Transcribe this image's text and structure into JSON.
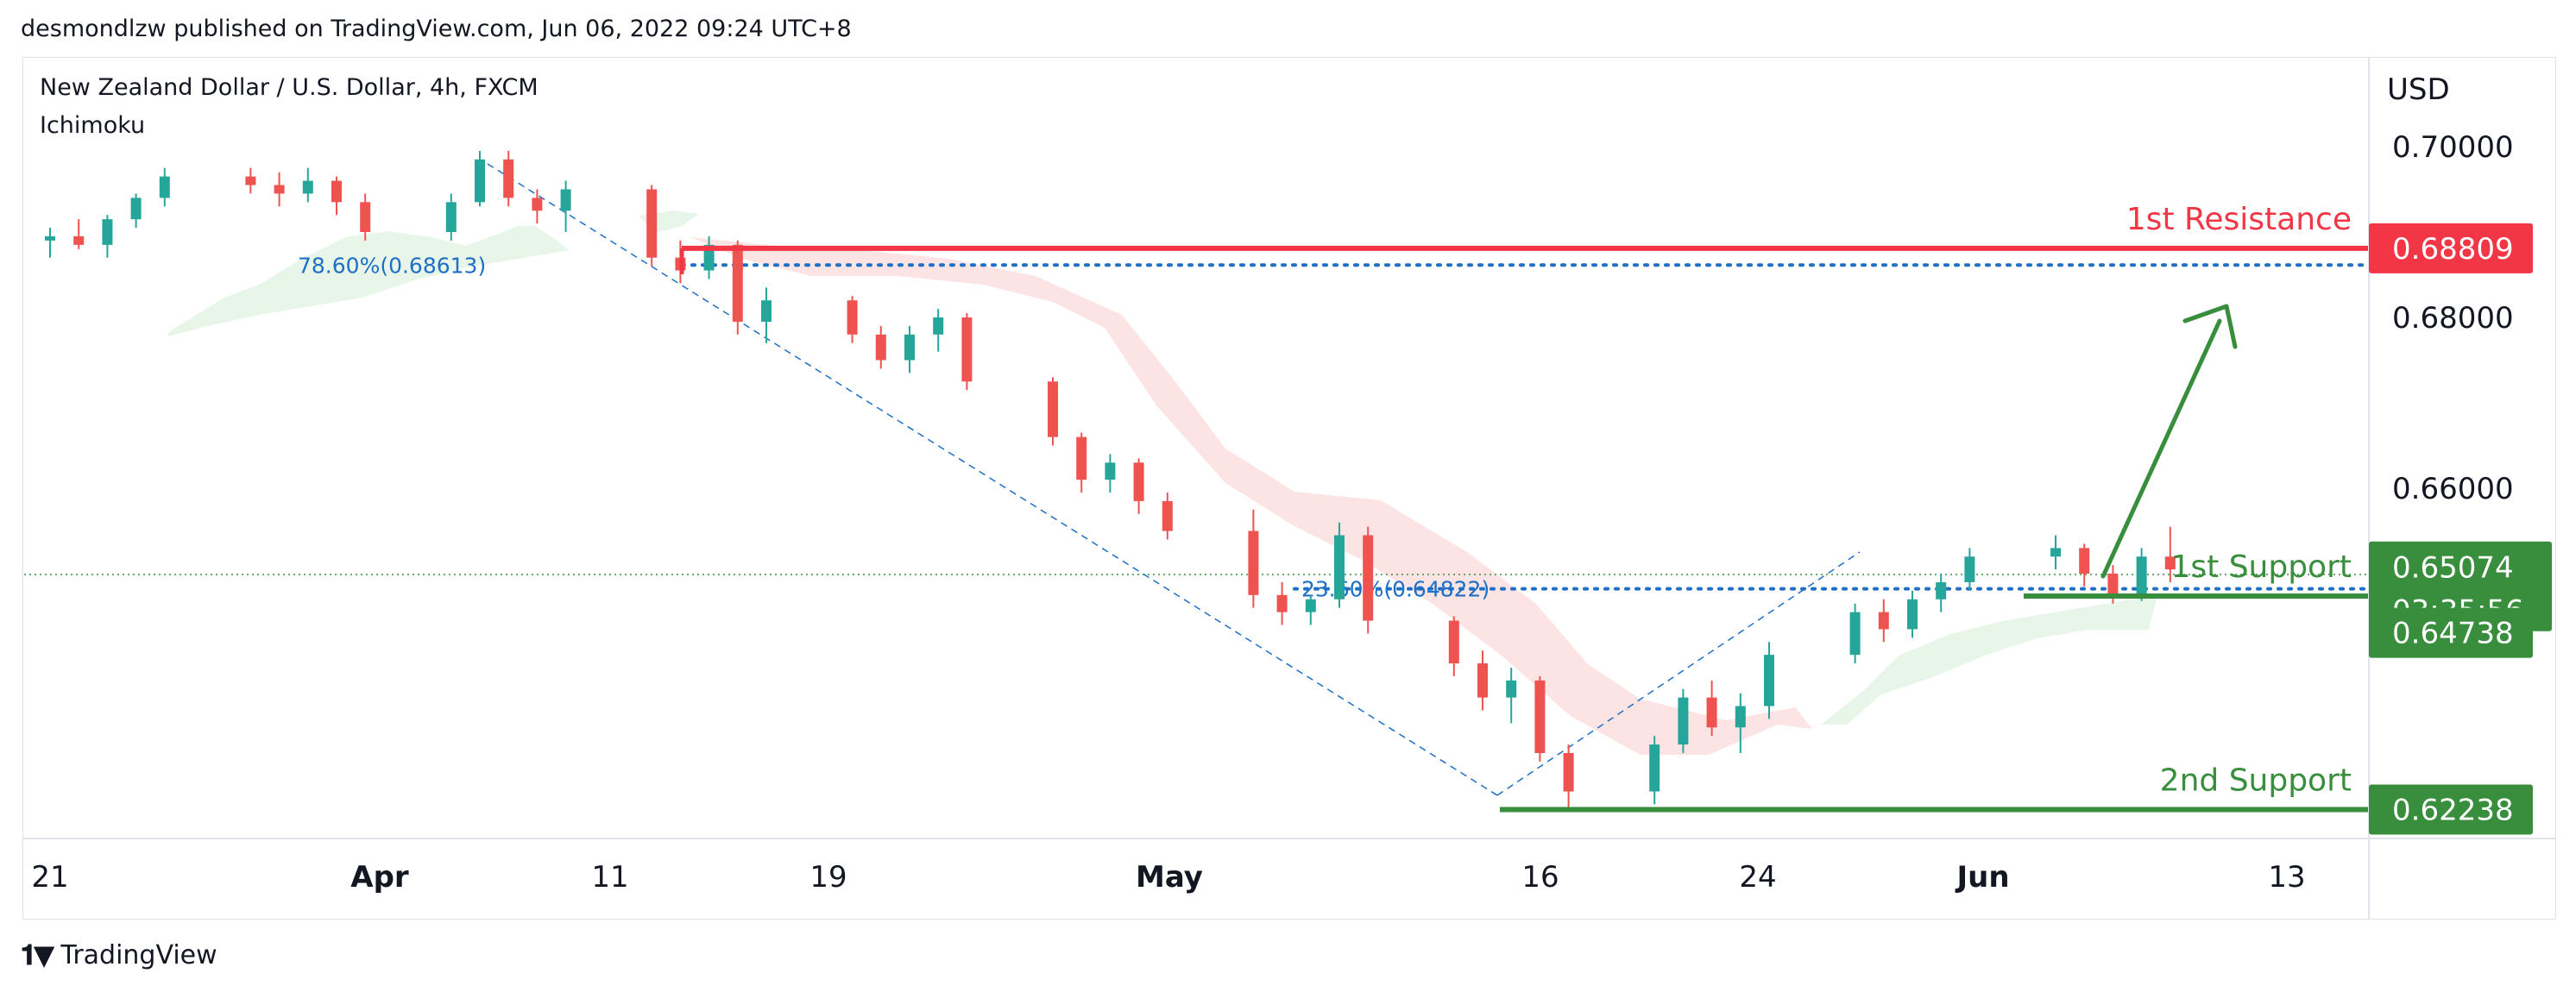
{
  "header": {
    "published": "desmondlzw published on TradingView.com, Jun 06, 2022 09:24 UTC+8"
  },
  "legend": {
    "symbol": "New Zealand Dollar / U.S. Dollar, 4h, FXCM",
    "indicator": "Ichimoku"
  },
  "price_axis": {
    "currency": "USD"
  },
  "footer": {
    "brand": "TradingView",
    "logo": "tradingview-logo-icon"
  },
  "colors": {
    "resistance": "#f23645",
    "support": "#388e3c",
    "fib": "#1e6fc6",
    "candle_up": "#26a69a",
    "candle_down": "#ef5350",
    "cloud_bull": "#e8f5e9",
    "cloud_bear": "#fde4e4"
  },
  "chart_data": {
    "type": "candlestick",
    "title": "",
    "series_name": "",
    "x_ticks": [
      "21",
      "Apr",
      "11",
      "19",
      "May",
      "16",
      "24",
      "Jun",
      "13"
    ],
    "y_ticks": [
      "0.70000",
      "0.68000",
      "0.66000"
    ],
    "ylim": [
      0.619,
      0.7105
    ],
    "grid": false,
    "levels": [
      {
        "label": "1st Resistance",
        "value": 0.68809,
        "price_label": "0.68809",
        "kind": "resistance"
      },
      {
        "label": "1st Support",
        "value": 0.64738,
        "price_label": "0.64738",
        "kind": "support"
      },
      {
        "label": "2nd Support",
        "value": 0.62238,
        "price_label": "0.62238",
        "kind": "support"
      }
    ],
    "fibonacci": [
      {
        "label": "78.60%(0.68613)",
        "value": 0.68613
      },
      {
        "label": "23.60%(0.64822)",
        "value": 0.64822
      }
    ],
    "current_price": {
      "price_label": "0.65074",
      "value": 0.65074,
      "countdown": "03:35:56"
    },
    "candles": [
      {
        "date": "2022-03-21",
        "o": 0.689,
        "h": 0.6905,
        "l": 0.687,
        "c": 0.6895
      },
      {
        "date": "2022-03-22",
        "o": 0.6895,
        "h": 0.6915,
        "l": 0.688,
        "c": 0.6885
      },
      {
        "date": "2022-03-23",
        "o": 0.6885,
        "h": 0.692,
        "l": 0.687,
        "c": 0.6915
      },
      {
        "date": "2022-03-24",
        "o": 0.6915,
        "h": 0.6945,
        "l": 0.6905,
        "c": 0.694
      },
      {
        "date": "2022-03-25",
        "o": 0.694,
        "h": 0.6975,
        "l": 0.693,
        "c": 0.6965
      },
      {
        "date": "2022-03-28",
        "o": 0.6965,
        "h": 0.6975,
        "l": 0.6945,
        "c": 0.6955
      },
      {
        "date": "2022-03-29",
        "o": 0.6955,
        "h": 0.697,
        "l": 0.693,
        "c": 0.6945
      },
      {
        "date": "2022-03-30",
        "o": 0.6945,
        "h": 0.6975,
        "l": 0.6935,
        "c": 0.696
      },
      {
        "date": "2022-03-31",
        "o": 0.696,
        "h": 0.6965,
        "l": 0.692,
        "c": 0.6935
      },
      {
        "date": "2022-04-01",
        "o": 0.6935,
        "h": 0.6945,
        "l": 0.689,
        "c": 0.69
      },
      {
        "date": "2022-04-04",
        "o": 0.69,
        "h": 0.6945,
        "l": 0.689,
        "c": 0.6935
      },
      {
        "date": "2022-04-05",
        "o": 0.6935,
        "h": 0.6995,
        "l": 0.693,
        "c": 0.6985
      },
      {
        "date": "2022-04-06",
        "o": 0.6985,
        "h": 0.6995,
        "l": 0.693,
        "c": 0.694
      },
      {
        "date": "2022-04-07",
        "o": 0.694,
        "h": 0.695,
        "l": 0.691,
        "c": 0.6925
      },
      {
        "date": "2022-04-08",
        "o": 0.6925,
        "h": 0.696,
        "l": 0.69,
        "c": 0.695
      },
      {
        "date": "2022-04-11",
        "o": 0.695,
        "h": 0.6955,
        "l": 0.686,
        "c": 0.687
      },
      {
        "date": "2022-04-12",
        "o": 0.687,
        "h": 0.689,
        "l": 0.684,
        "c": 0.6855
      },
      {
        "date": "2022-04-13",
        "o": 0.6855,
        "h": 0.6895,
        "l": 0.6845,
        "c": 0.6885
      },
      {
        "date": "2022-04-14",
        "o": 0.6885,
        "h": 0.689,
        "l": 0.678,
        "c": 0.6795
      },
      {
        "date": "2022-04-15",
        "o": 0.6795,
        "h": 0.6835,
        "l": 0.677,
        "c": 0.682
      },
      {
        "date": "2022-04-18",
        "o": 0.682,
        "h": 0.6825,
        "l": 0.677,
        "c": 0.678
      },
      {
        "date": "2022-04-19",
        "o": 0.678,
        "h": 0.679,
        "l": 0.674,
        "c": 0.675
      },
      {
        "date": "2022-04-20",
        "o": 0.675,
        "h": 0.679,
        "l": 0.6735,
        "c": 0.678
      },
      {
        "date": "2022-04-21",
        "o": 0.678,
        "h": 0.681,
        "l": 0.676,
        "c": 0.68
      },
      {
        "date": "2022-04-22",
        "o": 0.68,
        "h": 0.6805,
        "l": 0.6715,
        "c": 0.6725
      },
      {
        "date": "2022-04-25",
        "o": 0.6725,
        "h": 0.673,
        "l": 0.665,
        "c": 0.666
      },
      {
        "date": "2022-04-26",
        "o": 0.666,
        "h": 0.6665,
        "l": 0.6595,
        "c": 0.661
      },
      {
        "date": "2022-04-27",
        "o": 0.661,
        "h": 0.664,
        "l": 0.6595,
        "c": 0.663
      },
      {
        "date": "2022-04-28",
        "o": 0.663,
        "h": 0.6635,
        "l": 0.657,
        "c": 0.6585
      },
      {
        "date": "2022-04-29",
        "o": 0.6585,
        "h": 0.6595,
        "l": 0.654,
        "c": 0.655
      },
      {
        "date": "2022-05-02",
        "o": 0.655,
        "h": 0.6575,
        "l": 0.646,
        "c": 0.6475
      },
      {
        "date": "2022-05-03",
        "o": 0.6475,
        "h": 0.649,
        "l": 0.644,
        "c": 0.6455
      },
      {
        "date": "2022-05-04",
        "o": 0.6455,
        "h": 0.6475,
        "l": 0.644,
        "c": 0.647
      },
      {
        "date": "2022-05-05",
        "o": 0.647,
        "h": 0.656,
        "l": 0.646,
        "c": 0.6545
      },
      {
        "date": "2022-05-06",
        "o": 0.6545,
        "h": 0.6555,
        "l": 0.643,
        "c": 0.6445
      },
      {
        "date": "2022-05-09",
        "o": 0.6445,
        "h": 0.645,
        "l": 0.638,
        "c": 0.6395
      },
      {
        "date": "2022-05-10",
        "o": 0.6395,
        "h": 0.641,
        "l": 0.634,
        "c": 0.6355
      },
      {
        "date": "2022-05-11",
        "o": 0.6355,
        "h": 0.639,
        "l": 0.6325,
        "c": 0.6375
      },
      {
        "date": "2022-05-12",
        "o": 0.6375,
        "h": 0.638,
        "l": 0.628,
        "c": 0.629
      },
      {
        "date": "2022-05-13",
        "o": 0.629,
        "h": 0.63,
        "l": 0.6224,
        "c": 0.6245
      },
      {
        "date": "2022-05-16",
        "o": 0.6245,
        "h": 0.631,
        "l": 0.623,
        "c": 0.63
      },
      {
        "date": "2022-05-17",
        "o": 0.63,
        "h": 0.6365,
        "l": 0.629,
        "c": 0.6355
      },
      {
        "date": "2022-05-18",
        "o": 0.6355,
        "h": 0.6375,
        "l": 0.631,
        "c": 0.632
      },
      {
        "date": "2022-05-19",
        "o": 0.632,
        "h": 0.636,
        "l": 0.629,
        "c": 0.6345
      },
      {
        "date": "2022-05-20",
        "o": 0.6345,
        "h": 0.642,
        "l": 0.633,
        "c": 0.6405
      },
      {
        "date": "2022-05-23",
        "o": 0.6405,
        "h": 0.6465,
        "l": 0.6395,
        "c": 0.6455
      },
      {
        "date": "2022-05-24",
        "o": 0.6455,
        "h": 0.647,
        "l": 0.642,
        "c": 0.6435
      },
      {
        "date": "2022-05-25",
        "o": 0.6435,
        "h": 0.648,
        "l": 0.6425,
        "c": 0.647
      },
      {
        "date": "2022-05-26",
        "o": 0.647,
        "h": 0.65,
        "l": 0.6455,
        "c": 0.649
      },
      {
        "date": "2022-05-27",
        "o": 0.649,
        "h": 0.653,
        "l": 0.648,
        "c": 0.652
      },
      {
        "date": "2022-05-30",
        "o": 0.652,
        "h": 0.6545,
        "l": 0.6505,
        "c": 0.653
      },
      {
        "date": "2022-05-31",
        "o": 0.653,
        "h": 0.6535,
        "l": 0.6485,
        "c": 0.65
      },
      {
        "date": "2022-06-01",
        "o": 0.65,
        "h": 0.651,
        "l": 0.6465,
        "c": 0.6475
      },
      {
        "date": "2022-06-02",
        "o": 0.6475,
        "h": 0.653,
        "l": 0.6468,
        "c": 0.652
      },
      {
        "date": "2022-06-03",
        "o": 0.652,
        "h": 0.6555,
        "l": 0.649,
        "c": 0.6505
      }
    ]
  }
}
